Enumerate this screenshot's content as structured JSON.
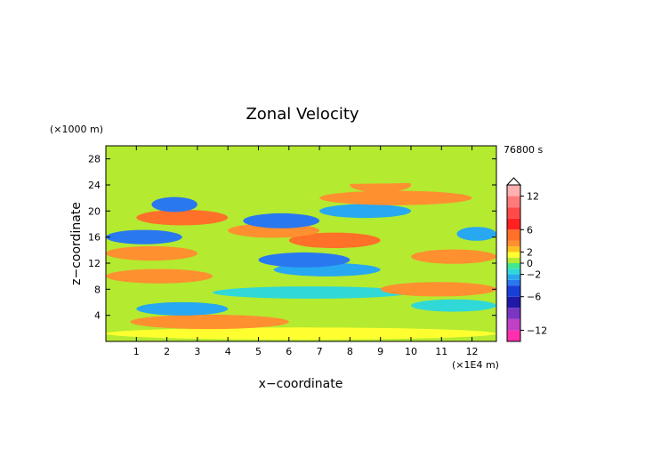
{
  "chart_data": {
    "type": "heatmap",
    "title": "Zonal Velocity",
    "xlabel": "x−coordinate",
    "ylabel": "z−coordinate",
    "x_unit_label": "(×1E4 m)",
    "y_unit_label": "(×1000 m)",
    "time_label": "76800 s",
    "xlim": [
      0,
      12.8
    ],
    "ylim": [
      0,
      30
    ],
    "x_ticks": [
      1,
      2,
      3,
      4,
      5,
      6,
      7,
      8,
      9,
      10,
      11,
      12
    ],
    "y_ticks": [
      4,
      8,
      12,
      16,
      20,
      24,
      28
    ],
    "colorbar": {
      "range": [
        -14,
        14
      ],
      "tick_values": [
        12,
        6,
        2,
        0,
        -2,
        -6,
        -12
      ],
      "tick_labels": [
        "12",
        "6",
        "2",
        "0",
        "−2",
        "−6",
        "−12"
      ],
      "levels": [
        {
          "min": -14,
          "max": -12,
          "color": "#ff2fb0"
        },
        {
          "min": -12,
          "max": -10,
          "color": "#c040c8"
        },
        {
          "min": -10,
          "max": -8,
          "color": "#7a36c2"
        },
        {
          "min": -8,
          "max": -6,
          "color": "#2018a8"
        },
        {
          "min": -6,
          "max": -4,
          "color": "#1840d8"
        },
        {
          "min": -4,
          "max": -3,
          "color": "#2a78f0"
        },
        {
          "min": -3,
          "max": -2,
          "color": "#28a8f0"
        },
        {
          "min": -2,
          "max": -1,
          "color": "#30d8d8"
        },
        {
          "min": -1,
          "max": 0,
          "color": "#40e890"
        },
        {
          "min": 0,
          "max": 1,
          "color": "#b4ea30"
        },
        {
          "min": 1,
          "max": 2,
          "color": "#ffff30"
        },
        {
          "min": 2,
          "max": 3,
          "color": "#ffc020"
        },
        {
          "min": 3,
          "max": 4,
          "color": "#ff9030"
        },
        {
          "min": 4,
          "max": 6,
          "color": "#ff7028"
        },
        {
          "min": 6,
          "max": 8,
          "color": "#ff2020"
        },
        {
          "min": 8,
          "max": 10,
          "color": "#ff4a4a"
        },
        {
          "min": 10,
          "max": 12,
          "color": "#ff7a7a"
        },
        {
          "min": 12,
          "max": 14,
          "color": "#ffb0b0"
        }
      ]
    },
    "bands": [
      {
        "z": 1.2,
        "x_start": 0.0,
        "x_end": 12.8,
        "value": 1.5
      },
      {
        "z": 3.0,
        "x_start": 0.8,
        "x_end": 6.0,
        "value": 3.5
      },
      {
        "z": 5.0,
        "x_start": 1.0,
        "x_end": 4.0,
        "value": -2.5
      },
      {
        "z": 5.5,
        "x_start": 10.0,
        "x_end": 12.8,
        "value": -1.5
      },
      {
        "z": 7.5,
        "x_start": 3.5,
        "x_end": 10.0,
        "value": -1.5
      },
      {
        "z": 8.0,
        "x_start": 9.0,
        "x_end": 12.8,
        "value": 3.5
      },
      {
        "z": 10.0,
        "x_start": 0.0,
        "x_end": 3.5,
        "value": 3.5
      },
      {
        "z": 11.0,
        "x_start": 5.5,
        "x_end": 9.0,
        "value": -2.5
      },
      {
        "z": 12.5,
        "x_start": 5.0,
        "x_end": 8.0,
        "value": -4.0
      },
      {
        "z": 13.5,
        "x_start": 0.0,
        "x_end": 3.0,
        "value": 3.5
      },
      {
        "z": 13.0,
        "x_start": 10.0,
        "x_end": 12.8,
        "value": 3.5
      },
      {
        "z": 15.5,
        "x_start": 6.0,
        "x_end": 9.0,
        "value": 4.5
      },
      {
        "z": 16.0,
        "x_start": 0.0,
        "x_end": 2.5,
        "value": -3.5
      },
      {
        "z": 16.5,
        "x_start": 11.5,
        "x_end": 12.8,
        "value": -3.0
      },
      {
        "z": 17.0,
        "x_start": 4.0,
        "x_end": 7.0,
        "value": 3.5
      },
      {
        "z": 18.5,
        "x_start": 4.5,
        "x_end": 7.0,
        "value": -4.0
      },
      {
        "z": 19.0,
        "x_start": 1.0,
        "x_end": 4.0,
        "value": 4.5
      },
      {
        "z": 20.0,
        "x_start": 7.0,
        "x_end": 10.0,
        "value": -3.0
      },
      {
        "z": 21.0,
        "x_start": 1.5,
        "x_end": 3.0,
        "value": -4.0
      },
      {
        "z": 22.0,
        "x_start": 7.0,
        "x_end": 12.0,
        "value": 3.5
      },
      {
        "z": 24.0,
        "x_start": 8.0,
        "x_end": 10.0,
        "value": 3.5
      },
      {
        "z": 25.0,
        "x_start": 0.0,
        "x_end": 12.8,
        "value": 0.5
      }
    ]
  }
}
